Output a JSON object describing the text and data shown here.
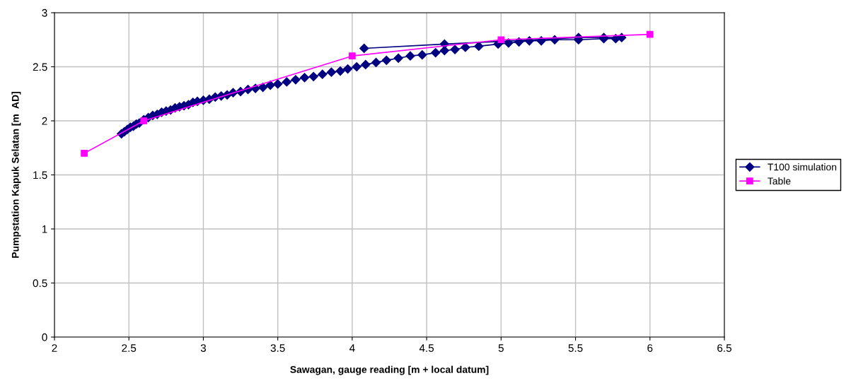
{
  "chart_data": {
    "type": "line",
    "xlabel": "Sawagan, gauge reading [m + local datum]",
    "ylabel": "Pumpstation Kapuk Selatan [m  AD]",
    "xlim": [
      2,
      6.5
    ],
    "xticks": [
      2,
      2.5,
      3,
      3.5,
      4,
      4.5,
      5,
      5.5,
      6,
      6.5
    ],
    "ylim": [
      0,
      3
    ],
    "yticks": [
      0,
      0.5,
      1,
      1.5,
      2,
      2.5,
      3
    ],
    "grid": true,
    "legend": "right",
    "series": [
      {
        "name": "T100 simulation",
        "color": "#000080",
        "marker": "diamond",
        "x": [
          2.45,
          2.47,
          2.49,
          2.51,
          2.53,
          2.55,
          2.57,
          2.6,
          2.63,
          2.66,
          2.69,
          2.72,
          2.75,
          2.78,
          2.81,
          2.84,
          2.87,
          2.9,
          2.93,
          2.96,
          3.0,
          3.04,
          3.08,
          3.12,
          3.16,
          3.2,
          3.25,
          3.3,
          3.35,
          3.4,
          3.45,
          3.5,
          3.56,
          3.62,
          3.68,
          3.74,
          3.8,
          3.86,
          3.92,
          3.97,
          4.03,
          4.09,
          4.16,
          4.23,
          4.31,
          4.39,
          4.47,
          4.56,
          4.62,
          4.69,
          4.76,
          4.85,
          4.98,
          5.05,
          5.12,
          5.19,
          5.27,
          5.36,
          5.52,
          5.69,
          5.77,
          5.81,
          5.69,
          5.52,
          4.62,
          4.08
        ],
        "values": [
          1.88,
          1.9,
          1.92,
          1.94,
          1.95,
          1.97,
          1.98,
          2.01,
          2.03,
          2.05,
          2.06,
          2.08,
          2.09,
          2.1,
          2.12,
          2.13,
          2.14,
          2.15,
          2.17,
          2.18,
          2.19,
          2.2,
          2.22,
          2.23,
          2.24,
          2.26,
          2.27,
          2.29,
          2.3,
          2.31,
          2.33,
          2.34,
          2.36,
          2.38,
          2.4,
          2.41,
          2.43,
          2.45,
          2.46,
          2.48,
          2.5,
          2.52,
          2.54,
          2.56,
          2.58,
          2.6,
          2.61,
          2.63,
          2.65,
          2.66,
          2.68,
          2.69,
          2.71,
          2.72,
          2.73,
          2.74,
          2.74,
          2.75,
          2.75,
          2.76,
          2.76,
          2.77,
          2.77,
          2.77,
          2.71,
          2.67
        ]
      },
      {
        "name": "Table",
        "color": "#ff00ff",
        "marker": "square",
        "x": [
          2.2,
          2.6,
          4,
          5,
          6
        ],
        "values": [
          1.7,
          2.0,
          2.6,
          2.75,
          2.8
        ]
      }
    ]
  }
}
